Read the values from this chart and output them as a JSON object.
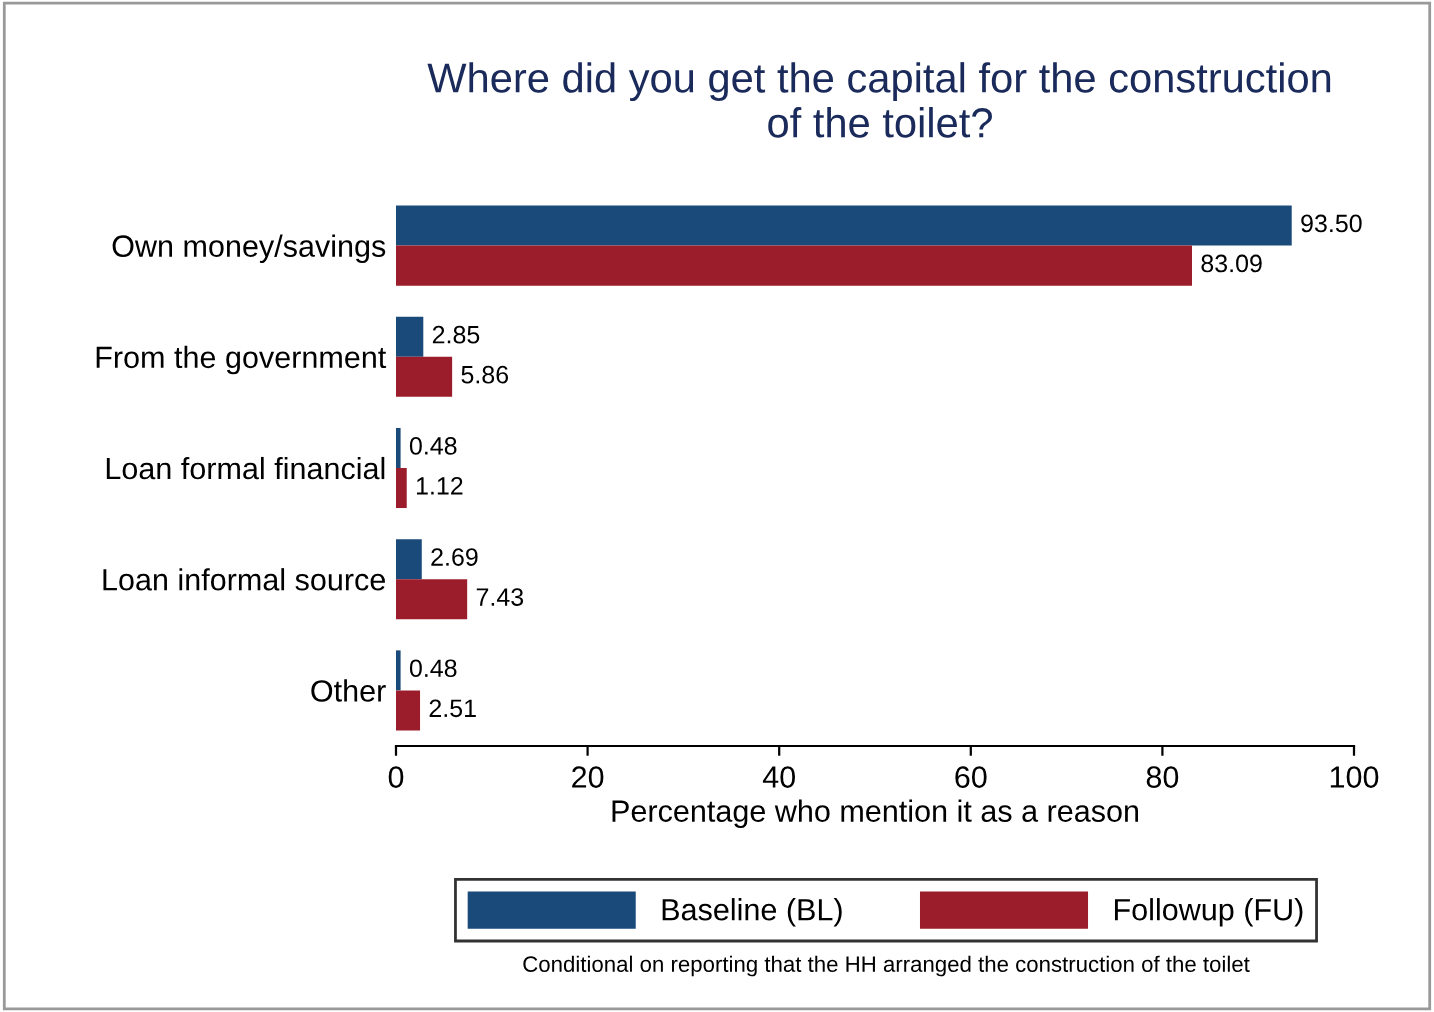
{
  "chart_data": {
    "type": "bar",
    "orientation": "horizontal",
    "title": "Where did you get the capital for the construction\nof the toilet?",
    "categories": [
      "Own money/savings",
      "From the government",
      "Loan formal financial",
      "Loan informal source",
      "Other"
    ],
    "series": [
      {
        "name": "Baseline (BL)",
        "color": "#1a4a7a",
        "values": [
          93.5,
          2.85,
          0.48,
          2.69,
          0.48
        ],
        "value_labels": [
          "93.50",
          "2.85",
          "0.48",
          "2.69",
          "0.48"
        ]
      },
      {
        "name": "Followup (FU)",
        "color": "#9b1c2a",
        "values": [
          83.09,
          5.86,
          1.12,
          7.43,
          2.51
        ],
        "value_labels": [
          "83.09",
          "5.86",
          "1.12",
          "7.43",
          "2.51"
        ]
      }
    ],
    "xlabel": "Percentage who mention it as a reason",
    "xlim": [
      0,
      100
    ],
    "xticks": [
      0,
      20,
      40,
      60,
      80,
      100
    ],
    "grid": false,
    "legend": "bottom",
    "annotations": [
      "Conditional on reporting that the HH arranged the construction of the toilet"
    ]
  }
}
